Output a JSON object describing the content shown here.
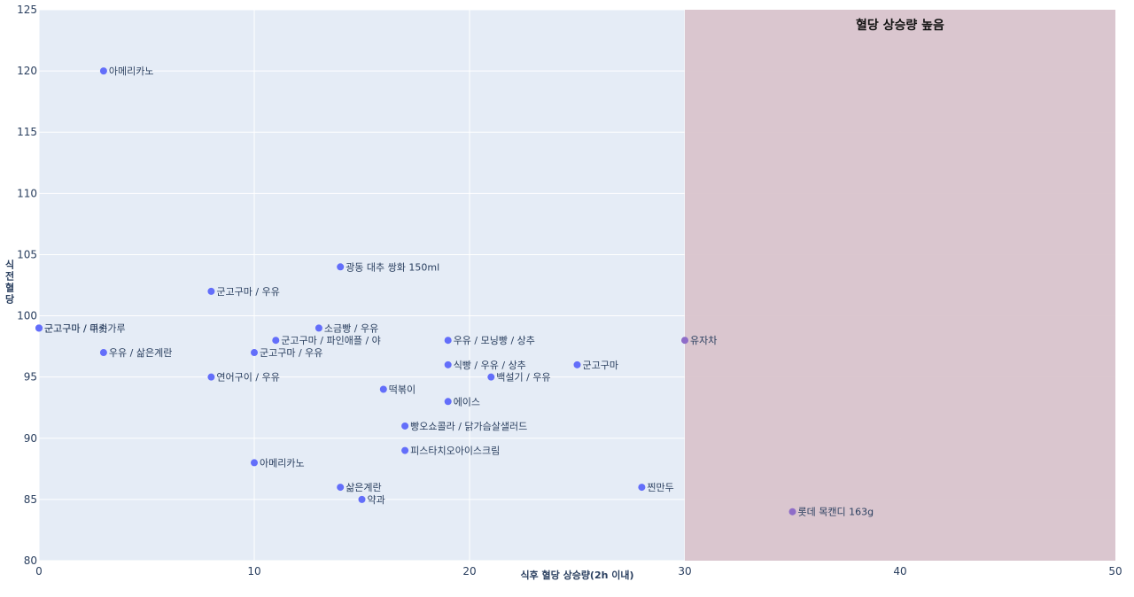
{
  "chart_data": {
    "type": "scatter",
    "title": "",
    "xlabel": "식후 혈당 상승량(2h 이내)",
    "ylabel": "식전혈당",
    "xlim": [
      0,
      50
    ],
    "ylim": [
      80,
      125
    ],
    "x_ticks": [
      0,
      10,
      20,
      30,
      40,
      50
    ],
    "y_ticks": [
      80,
      85,
      90,
      95,
      100,
      105,
      110,
      115,
      120,
      125
    ],
    "grid": true,
    "highlight_region": {
      "x_start": 30,
      "x_end": 50,
      "label": "혈당 상승량 높음",
      "color": "#d9c4cc"
    },
    "colors": {
      "plot_bg": "#e5ecf6",
      "marker": "#636efa",
      "marker_in_region": "#8e6cc8",
      "grid": "#ffffff",
      "text": "#2a3f5f"
    },
    "points": [
      {
        "x": 3,
        "y": 120,
        "label": "아메리카노"
      },
      {
        "x": 14,
        "y": 104,
        "label": "광동 대추 쌍화 150ml"
      },
      {
        "x": 8,
        "y": 102,
        "label": "군고구마 / 우유"
      },
      {
        "x": 0,
        "y": 99,
        "label": "군고구마 / 미숫가루"
      },
      {
        "x": 0,
        "y": 99,
        "label": "군고구마 / 쿠키"
      },
      {
        "x": 13,
        "y": 99,
        "label": "소금빵 / 우유"
      },
      {
        "x": 11,
        "y": 98,
        "label": "군고구마 / 파인애플 / 야"
      },
      {
        "x": 19,
        "y": 98,
        "label": "우유 / 모닝빵 / 상추"
      },
      {
        "x": 30,
        "y": 98,
        "label": "유자차"
      },
      {
        "x": 3,
        "y": 97,
        "label": "우유 / 삶은계란"
      },
      {
        "x": 10,
        "y": 97,
        "label": "군고구마 / 우유"
      },
      {
        "x": 19,
        "y": 96,
        "label": "식빵 / 우유 / 상추"
      },
      {
        "x": 25,
        "y": 96,
        "label": "군고구마"
      },
      {
        "x": 8,
        "y": 95,
        "label": "연어구이 / 우유"
      },
      {
        "x": 21,
        "y": 95,
        "label": "백설기 / 우유"
      },
      {
        "x": 16,
        "y": 94,
        "label": "떡볶이"
      },
      {
        "x": 19,
        "y": 93,
        "label": "에이스"
      },
      {
        "x": 17,
        "y": 91,
        "label": "빵오쇼콜라 / 닭가슴살샐러드"
      },
      {
        "x": 17,
        "y": 89,
        "label": "피스타치오아이스크림"
      },
      {
        "x": 10,
        "y": 88,
        "label": "아메리카노"
      },
      {
        "x": 14,
        "y": 86,
        "label": "삶은계란"
      },
      {
        "x": 28,
        "y": 86,
        "label": "찐만두"
      },
      {
        "x": 15,
        "y": 85,
        "label": "약과"
      },
      {
        "x": 35,
        "y": 84,
        "label": "롯데 목캔디 163g"
      }
    ]
  }
}
